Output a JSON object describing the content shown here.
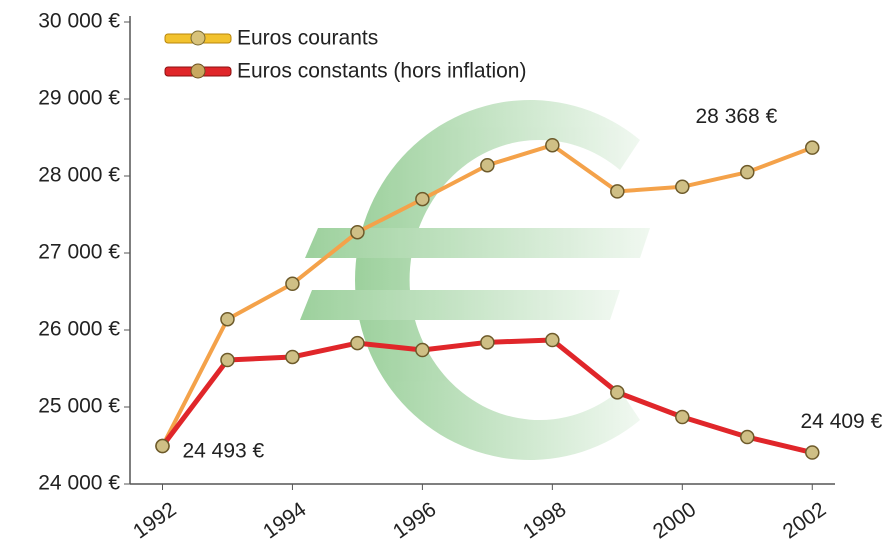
{
  "chart_data": {
    "type": "line",
    "x": [
      1992,
      1993,
      1994,
      1995,
      1996,
      1997,
      1998,
      1999,
      2000,
      2001,
      2002
    ],
    "xlim": [
      1991.5,
      2002.35
    ],
    "xticks": [
      1992,
      1994,
      1996,
      1998,
      2000,
      2002
    ],
    "ylim": [
      24000,
      30000
    ],
    "yticks": [
      {
        "value": 24000,
        "label": "24 000 €"
      },
      {
        "value": 25000,
        "label": "25 000 €"
      },
      {
        "value": 26000,
        "label": "26 000 €"
      },
      {
        "value": 27000,
        "label": "27 000 €"
      },
      {
        "value": 28000,
        "label": "28 000 €"
      },
      {
        "value": 29000,
        "label": "29 000 €"
      },
      {
        "value": 30000,
        "label": "30 000 €"
      }
    ],
    "series": [
      {
        "name": "Euros courants",
        "color": "#f4a24a",
        "values": [
          24493,
          26140,
          26600,
          27270,
          27700,
          28140,
          28400,
          27800,
          27860,
          28050,
          28368
        ],
        "value_labels": [
          "24 493 €",
          null,
          null,
          null,
          null,
          null,
          null,
          null,
          null,
          null,
          "28 368 €"
        ]
      },
      {
        "name": "Euros constants (hors inflation)",
        "color": "#e0262a",
        "values": [
          24493,
          25610,
          25650,
          25830,
          25740,
          25840,
          25870,
          25190,
          24870,
          24610,
          24409
        ],
        "value_labels": [
          null,
          null,
          null,
          null,
          null,
          null,
          null,
          null,
          null,
          null,
          "24 409 €"
        ]
      }
    ]
  }
}
